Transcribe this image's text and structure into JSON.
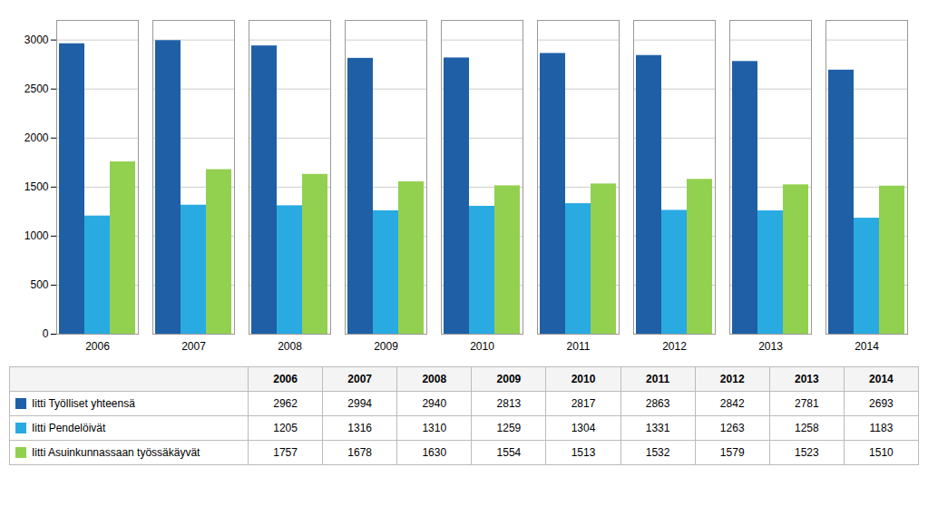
{
  "chart_data": {
    "type": "bar",
    "categories": [
      "2006",
      "2007",
      "2008",
      "2009",
      "2010",
      "2011",
      "2012",
      "2013",
      "2014"
    ],
    "series": [
      {
        "name": "Iitti Työlliset yhteensä",
        "color": "#1F5FA6",
        "values": [
          2962,
          2994,
          2940,
          2813,
          2817,
          2863,
          2842,
          2781,
          2693
        ]
      },
      {
        "name": "Iitti Pendelöivät",
        "color": "#29ABE2",
        "values": [
          1205,
          1316,
          1310,
          1259,
          1304,
          1331,
          1263,
          1258,
          1183
        ]
      },
      {
        "name": "Iitti Asuinkunnassaan työssäkäyvät",
        "color": "#92D050",
        "values": [
          1757,
          1678,
          1630,
          1554,
          1513,
          1532,
          1579,
          1523,
          1510
        ]
      }
    ],
    "ylim": [
      0,
      3200
    ],
    "yticks": [
      0,
      500,
      1000,
      1500,
      2000,
      2500,
      3000
    ],
    "grid": true,
    "legend": "bottom"
  }
}
